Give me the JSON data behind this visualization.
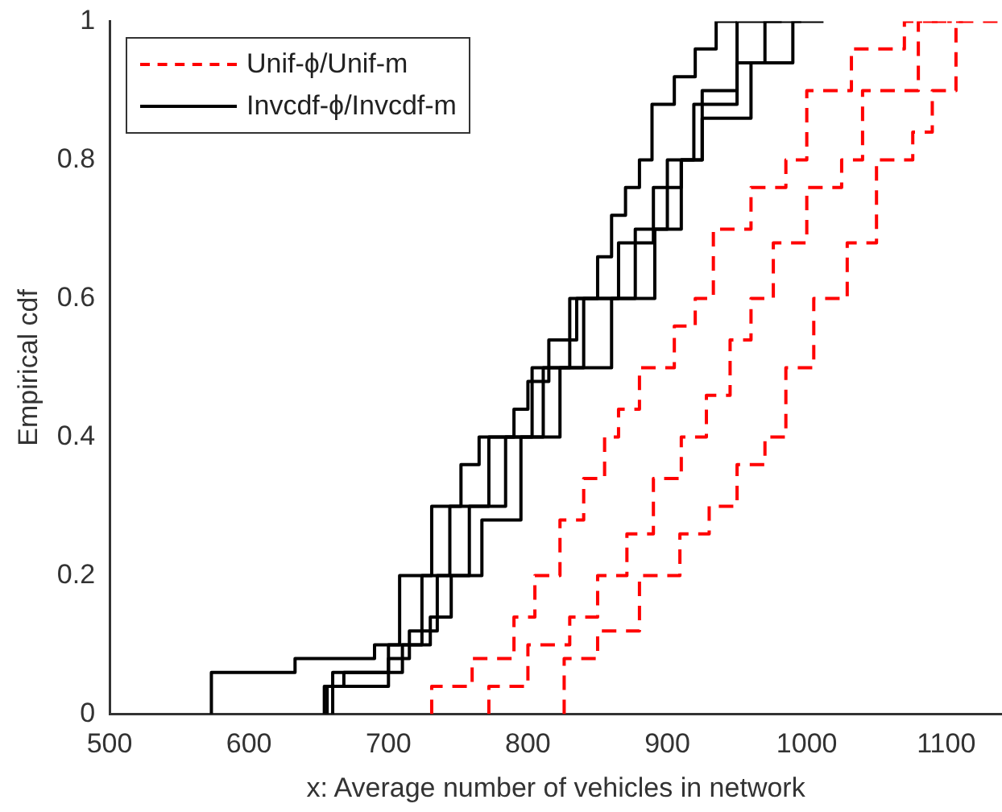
{
  "chart_data": {
    "type": "step",
    "xlabel": "x: Average number of vehicles in network",
    "ylabel": "Empirical cdf",
    "xlim": [
      500,
      1140
    ],
    "ylim": [
      0,
      1
    ],
    "xticks": [
      500,
      600,
      700,
      800,
      900,
      1000,
      1100
    ],
    "yticks": [
      0,
      0.2,
      0.4,
      0.6,
      0.8,
      1
    ],
    "grid": false,
    "legend": "top left",
    "series": [
      {
        "name": "Unif-ϕ/Unif-m",
        "color": "#ff0000",
        "line_style": "dashed",
        "x": [
          731,
          731,
          760,
          790,
          805,
          823,
          840,
          855,
          865,
          880,
          905,
          920,
          933,
          960,
          985,
          1000,
          1032,
          1070,
          1104
        ],
        "values": [
          0,
          0.02,
          0.04,
          0.08,
          0.14,
          0.2,
          0.28,
          0.34,
          0.4,
          0.44,
          0.5,
          0.56,
          0.6,
          0.7,
          0.76,
          0.8,
          0.9,
          0.96,
          1
        ]
      },
      {
        "color": "#ff0000",
        "line_style": "dashed",
        "x": [
          772,
          772,
          800,
          830,
          850,
          871,
          890,
          910,
          928,
          945,
          960,
          976,
          1000,
          1025,
          1040,
          1080,
          1112
        ],
        "values": [
          0,
          0.02,
          0.04,
          0.1,
          0.14,
          0.2,
          0.26,
          0.34,
          0.4,
          0.46,
          0.54,
          0.6,
          0.68,
          0.76,
          0.8,
          0.9,
          1
        ]
      },
      {
        "color": "#ff0000",
        "line_style": "dashed",
        "x": [
          826,
          826,
          850,
          880,
          909,
          930,
          950,
          970,
          985,
          1005,
          1029,
          1050,
          1076,
          1090,
          1107,
          1140
        ],
        "values": [
          0,
          0.04,
          0.08,
          0.12,
          0.2,
          0.26,
          0.3,
          0.36,
          0.4,
          0.5,
          0.6,
          0.68,
          0.8,
          0.84,
          0.9,
          1
        ]
      },
      {
        "name": "Invcdf-ϕ/Invcdf-m",
        "color": "#000000",
        "line_style": "solid",
        "x": [
          573,
          573,
          633,
          690,
          708,
          731,
          752,
          765,
          790,
          800,
          815,
          835,
          850,
          860,
          870,
          880,
          889,
          905,
          920,
          935,
          950
        ],
        "values": [
          0,
          0.02,
          0.06,
          0.08,
          0.1,
          0.2,
          0.3,
          0.36,
          0.4,
          0.44,
          0.48,
          0.54,
          0.6,
          0.66,
          0.72,
          0.76,
          0.8,
          0.88,
          0.92,
          0.96,
          1
        ]
      },
      {
        "color": "#000000",
        "line_style": "solid",
        "x": [
          654,
          654,
          668,
          700,
          724,
          744,
          772,
          803,
          830,
          865,
          890,
          910,
          925,
          950,
          982
        ],
        "values": [
          0,
          0.02,
          0.04,
          0.06,
          0.1,
          0.2,
          0.3,
          0.4,
          0.5,
          0.6,
          0.68,
          0.76,
          0.8,
          0.9,
          1
        ]
      },
      {
        "color": "#000000",
        "line_style": "solid",
        "x": [
          656,
          656,
          700,
          715,
          735,
          758,
          784,
          811,
          840,
          877,
          900,
          919,
          950,
          970,
          996
        ],
        "values": [
          0,
          0.02,
          0.04,
          0.08,
          0.12,
          0.2,
          0.3,
          0.4,
          0.5,
          0.6,
          0.7,
          0.8,
          0.88,
          0.94,
          1
        ]
      },
      {
        "color": "#000000",
        "line_style": "solid",
        "x": [
          660,
          660,
          710,
          730,
          745,
          767,
          795,
          823,
          860,
          891,
          910,
          925,
          960,
          990,
          1012
        ],
        "values": [
          0,
          0.02,
          0.06,
          0.1,
          0.14,
          0.2,
          0.28,
          0.4,
          0.5,
          0.6,
          0.7,
          0.8,
          0.86,
          0.94,
          1
        ]
      }
    ]
  }
}
